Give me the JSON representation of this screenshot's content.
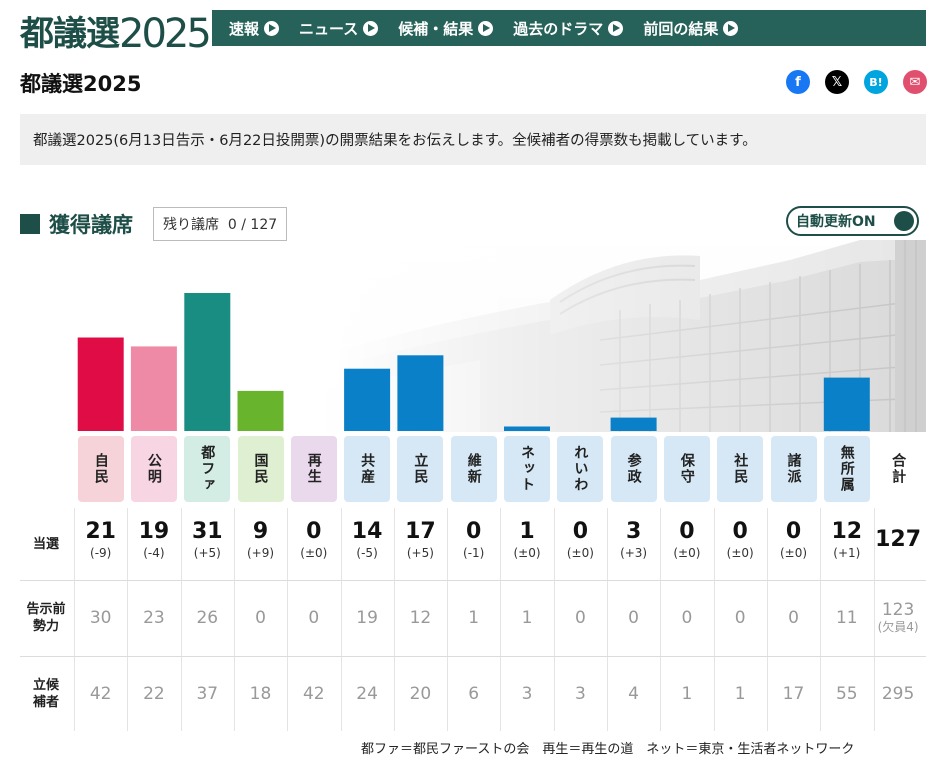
{
  "header": {
    "logo_kanji": "都議選",
    "logo_year": "2025",
    "nav": [
      "速報",
      "ニュース",
      "候補・結果",
      "過去のドラマ",
      "前回の結果"
    ]
  },
  "page_title": "都議選2025",
  "share": {
    "facebook": "f",
    "x": "𝕏",
    "hatena": "B!",
    "mail": "✉"
  },
  "intro": "都議選2025(6月13日告示・6月22日投開票)の開票結果をお伝えします。全候補者の得票数も掲載しています。",
  "seats": {
    "title": "獲得議席",
    "remaining_label": "残り議席",
    "remaining_value": "0 / 127",
    "auto_update": "自動更新ON"
  },
  "table": {
    "row_labels": {
      "won": "当選",
      "pre": "告示前\n勢力",
      "cand": "立候\n補者"
    },
    "total_label": "合計",
    "total_won": "127",
    "total_pre": "123",
    "total_pre_note": "(欠員4)",
    "total_cand": "295"
  },
  "footnote": "都ファ＝都民ファーストの会　再生＝再生の道　ネット＝東京・生活者ネットワーク",
  "colors": {
    "brand": "#26625a",
    "brand_dark": "#1e4e48"
  },
  "chart_data": {
    "type": "bar",
    "categories": [
      "自民",
      "公明",
      "都ファ",
      "国民",
      "再生",
      "共産",
      "立民",
      "維新",
      "ネット",
      "れいわ",
      "参政",
      "保守",
      "社民",
      "諸派",
      "無所属"
    ],
    "values": [
      21,
      19,
      31,
      9,
      0,
      14,
      17,
      0,
      1,
      0,
      3,
      0,
      0,
      0,
      12
    ],
    "change": [
      "(-9)",
      "(-4)",
      "(+5)",
      "(+9)",
      "(±0)",
      "(-5)",
      "(+5)",
      "(-1)",
      "(±0)",
      "(±0)",
      "(+3)",
      "(±0)",
      "(±0)",
      "(±0)",
      "(+1)"
    ],
    "pre_election": [
      30,
      23,
      26,
      0,
      0,
      19,
      12,
      1,
      1,
      0,
      0,
      0,
      0,
      0,
      11
    ],
    "candidates": [
      42,
      22,
      37,
      18,
      42,
      24,
      20,
      6,
      3,
      3,
      4,
      1,
      1,
      17,
      55
    ],
    "bar_colors": [
      "#e00c46",
      "#ee8aa6",
      "#1a8d82",
      "#68b42c",
      "#c8a6d6",
      "#0a80c8",
      "#0a80c8",
      "#0a80c8",
      "#0a80c8",
      "#0a80c8",
      "#0a80c8",
      "#0a80c8",
      "#0a80c8",
      "#0a80c8",
      "#0a80c8"
    ],
    "label_bg": [
      "#f6d3d8",
      "#f7d5e2",
      "#d3ece4",
      "#dff0d2",
      "#ead8ec",
      "#d6e8f5",
      "#d6e8f5",
      "#d6e8f5",
      "#d6e8f5",
      "#d6e8f5",
      "#d6e8f5",
      "#d6e8f5",
      "#d6e8f5",
      "#d6e8f5",
      "#d6e8f5"
    ],
    "ylim": [
      0,
      31
    ],
    "grid": false,
    "legend": "none"
  }
}
